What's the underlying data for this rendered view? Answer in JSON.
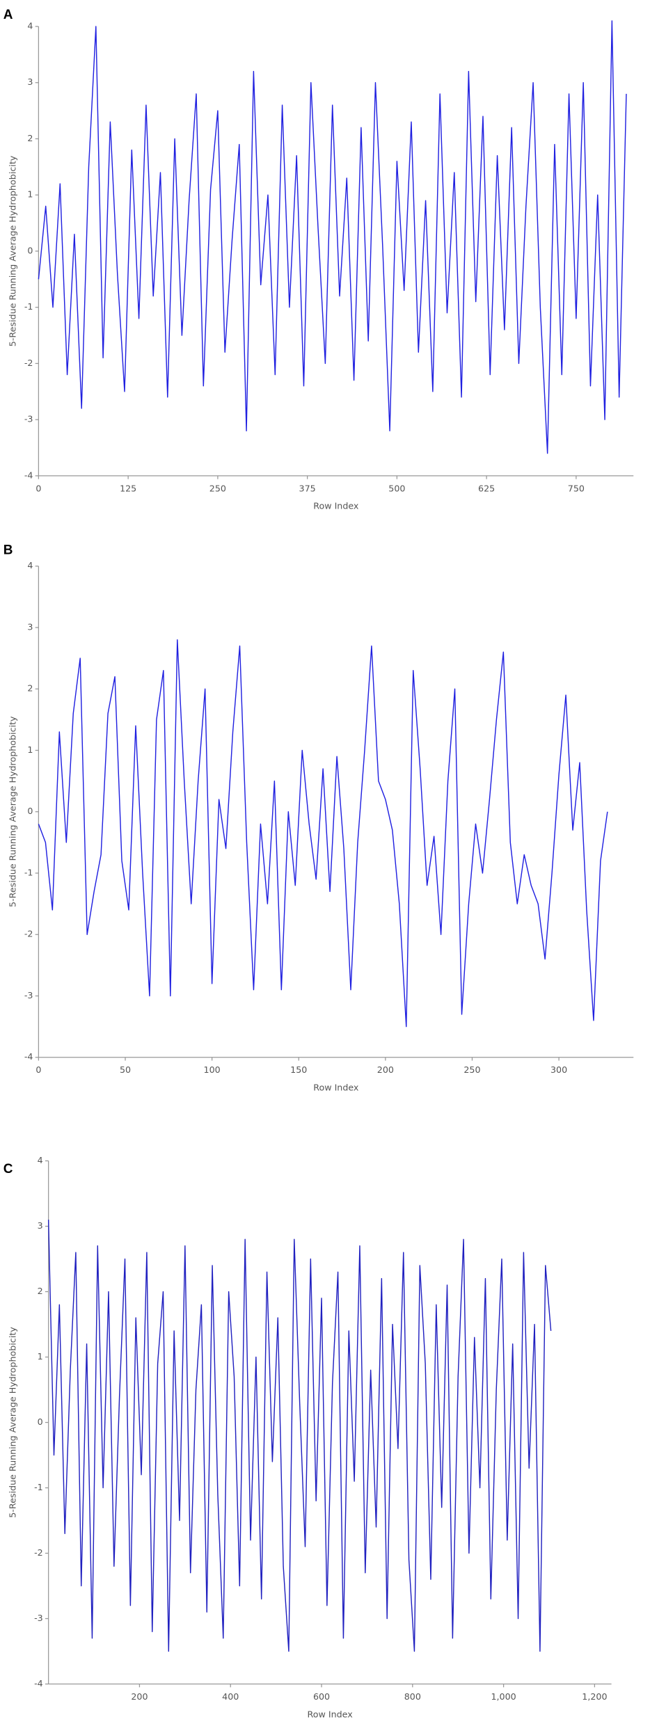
{
  "chart_data": [
    {
      "type": "line",
      "title": "A",
      "y_label": "5-Residue Running Average Hydrophobicity",
      "x_label": "Row Index",
      "xlim": [
        0,
        830
      ],
      "ylim": [
        -4,
        4
      ],
      "xticks": [
        0,
        125,
        250,
        375,
        500,
        625,
        750
      ],
      "yticks": [
        -4,
        -3,
        -2,
        -1,
        0,
        1,
        2,
        3,
        4
      ],
      "series": [
        {
          "color": "#2020e0",
          "x": [
            0,
            10,
            20,
            30,
            40,
            50,
            60,
            70,
            80,
            90,
            100,
            110,
            120,
            130,
            140,
            150,
            160,
            170,
            180,
            190,
            200,
            210,
            220,
            230,
            240,
            250,
            260,
            270,
            280,
            290,
            300,
            310,
            320,
            330,
            340,
            350,
            360,
            370,
            380,
            390,
            400,
            410,
            420,
            430,
            440,
            450,
            460,
            470,
            480,
            490,
            500,
            510,
            520,
            530,
            540,
            550,
            560,
            570,
            580,
            590,
            600,
            610,
            620,
            630,
            640,
            650,
            660,
            670,
            680,
            690,
            700,
            710,
            720,
            730,
            740,
            750,
            760,
            770,
            780,
            790,
            800,
            810,
            820
          ],
          "values": [
            -0.5,
            0.8,
            -1.0,
            1.2,
            -2.2,
            0.3,
            -2.8,
            1.5,
            4.0,
            -1.9,
            2.3,
            -0.4,
            -2.5,
            1.8,
            -1.2,
            2.6,
            -0.8,
            1.4,
            -2.6,
            2.0,
            -1.5,
            0.9,
            2.8,
            -2.4,
            1.1,
            2.5,
            -1.8,
            0.2,
            1.9,
            -3.2,
            3.2,
            -0.6,
            1.0,
            -2.2,
            2.6,
            -1.0,
            1.7,
            -2.4,
            3.0,
            0.4,
            -2.0,
            2.6,
            -0.8,
            1.3,
            -2.3,
            2.2,
            -1.6,
            3.0,
            0.1,
            -3.2,
            1.6,
            -0.7,
            2.3,
            -1.8,
            0.9,
            -2.5,
            2.8,
            -1.1,
            1.4,
            -2.6,
            3.2,
            -0.9,
            2.4,
            -2.2,
            1.7,
            -1.4,
            2.2,
            -2.0,
            0.8,
            3.0,
            -1.0,
            -3.6,
            1.9,
            -2.2,
            2.8,
            -1.2,
            3.0,
            -2.4,
            1.0,
            -3.0,
            4.1,
            -2.6,
            2.8
          ]
        }
      ]
    },
    {
      "type": "line",
      "title": "B",
      "y_label": "5-Residue Running Average Hydrophobicity",
      "x_label": "Row Index",
      "xlim": [
        0,
        343
      ],
      "ylim": [
        -4,
        4
      ],
      "xticks": [
        0,
        50,
        100,
        150,
        200,
        250,
        300
      ],
      "yticks": [
        -4,
        -3,
        -2,
        -1,
        0,
        1,
        2,
        3,
        4
      ],
      "series": [
        {
          "color": "#2020e0",
          "x": [
            0,
            4,
            8,
            12,
            16,
            20,
            24,
            28,
            32,
            36,
            40,
            44,
            48,
            52,
            56,
            60,
            64,
            68,
            72,
            76,
            80,
            84,
            88,
            92,
            96,
            100,
            104,
            108,
            112,
            116,
            120,
            124,
            128,
            132,
            136,
            140,
            144,
            148,
            152,
            156,
            160,
            164,
            168,
            172,
            176,
            180,
            184,
            188,
            192,
            196,
            200,
            204,
            208,
            212,
            216,
            220,
            224,
            228,
            232,
            236,
            240,
            244,
            248,
            252,
            256,
            260,
            264,
            268,
            272,
            276,
            280,
            284,
            288,
            292,
            296,
            300,
            304,
            308,
            312,
            316,
            320,
            324,
            328
          ],
          "values": [
            -0.2,
            -0.5,
            -1.6,
            1.3,
            -0.5,
            1.6,
            2.5,
            -2.0,
            -1.3,
            -0.7,
            1.6,
            2.2,
            -0.8,
            -1.6,
            1.4,
            -1.0,
            -3.0,
            1.5,
            2.3,
            -3.0,
            2.8,
            0.5,
            -1.5,
            0.5,
            2.0,
            -2.8,
            0.2,
            -0.6,
            1.3,
            2.7,
            -0.5,
            -2.9,
            -0.2,
            -1.5,
            0.5,
            -2.9,
            0.0,
            -1.2,
            1.0,
            -0.2,
            -1.1,
            0.7,
            -1.3,
            0.9,
            -0.6,
            -2.9,
            -0.5,
            1.0,
            2.7,
            0.5,
            0.2,
            -0.3,
            -1.5,
            -3.5,
            2.3,
            0.7,
            -1.2,
            -0.4,
            -2.0,
            0.5,
            2.0,
            -3.3,
            -1.5,
            -0.2,
            -1.0,
            0.2,
            1.5,
            2.6,
            -0.5,
            -1.5,
            -0.7,
            -1.2,
            -1.5,
            -2.4,
            -1.0,
            0.6,
            1.9,
            -0.3,
            0.8,
            -1.6,
            -3.4,
            -0.8,
            0.0
          ]
        }
      ]
    },
    {
      "type": "line",
      "title": "C",
      "y_label": "5-Residue Running Average Hydrophobicity",
      "x_label": "Row Index",
      "xlim": [
        0,
        1237
      ],
      "ylim": [
        -4,
        4
      ],
      "xticks": [
        200,
        400,
        600,
        800,
        {
          "value": 1000,
          "label": "1,000"
        },
        {
          "value": 1200,
          "label": "1,200"
        }
      ],
      "yticks": [
        -4,
        -3,
        -2,
        -1,
        0,
        1,
        2,
        3,
        4
      ],
      "series": [
        {
          "color": "#2020c0",
          "x": [
            0,
            12,
            24,
            36,
            48,
            60,
            72,
            84,
            96,
            108,
            120,
            132,
            144,
            156,
            168,
            180,
            192,
            204,
            216,
            228,
            240,
            252,
            264,
            276,
            288,
            300,
            312,
            324,
            336,
            348,
            360,
            372,
            384,
            396,
            408,
            420,
            432,
            444,
            456,
            468,
            480,
            492,
            504,
            516,
            528,
            540,
            552,
            564,
            576,
            588,
            600,
            612,
            624,
            636,
            648,
            660,
            672,
            684,
            696,
            708,
            720,
            732,
            744,
            756,
            768,
            780,
            792,
            804,
            816,
            828,
            840,
            852,
            864,
            876,
            888,
            900,
            912,
            924,
            936,
            948,
            960,
            972,
            984,
            996,
            1008,
            1020,
            1032,
            1044,
            1056,
            1068,
            1080,
            1092,
            1104
          ],
          "values": [
            3.1,
            -0.5,
            1.8,
            -1.7,
            0.8,
            2.6,
            -2.5,
            1.2,
            -3.3,
            2.7,
            -1.0,
            2.0,
            -2.2,
            0.4,
            2.5,
            -2.8,
            1.6,
            -0.8,
            2.6,
            -3.2,
            0.9,
            2.0,
            -3.5,
            1.4,
            -1.5,
            2.7,
            -2.3,
            0.5,
            1.8,
            -2.9,
            2.4,
            -1.1,
            -3.3,
            2.0,
            0.7,
            -2.5,
            2.8,
            -1.8,
            1.0,
            -2.7,
            2.3,
            -0.6,
            1.6,
            -2.2,
            -3.5,
            2.8,
            0.3,
            -1.9,
            2.5,
            -1.2,
            1.9,
            -2.8,
            0.6,
            2.3,
            -3.3,
            1.4,
            -0.9,
            2.7,
            -2.3,
            0.8,
            -1.6,
            2.2,
            -3.0,
            1.5,
            -0.4,
            2.6,
            -2.1,
            -3.5,
            2.4,
            0.9,
            -2.4,
            1.8,
            -1.3,
            2.1,
            -3.3,
            0.7,
            2.8,
            -2.0,
            1.3,
            -1.0,
            2.2,
            -2.7,
            0.5,
            2.5,
            -1.8,
            1.2,
            -3.0,
            2.6,
            -0.7,
            1.5,
            -3.5,
            2.4,
            1.4
          ]
        }
      ]
    }
  ]
}
